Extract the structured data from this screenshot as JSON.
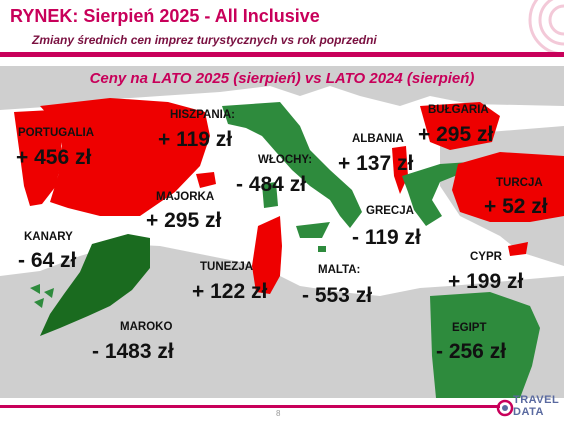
{
  "header": {
    "title": "RYNEK: Sierpień 2025 - All Inclusive",
    "subtitle": "Zmiany średnich cen imprez turystycznych vs rok poprzedni"
  },
  "map": {
    "heading": "Ceny na LATO 2025 (sierpień) vs  LATO 2024 (sierpień)",
    "colors": {
      "increase": "#ee0000",
      "decrease": "#2e8b3d",
      "dark_decrease": "#1a6b1f",
      "land": "#cfcfcf",
      "sea": "#ffffff"
    },
    "destinations": [
      {
        "key": "portugalia",
        "name": "PORTUGALIA",
        "change": "+ 456 zł",
        "trend": "up"
      },
      {
        "key": "hiszpania",
        "name": "HISZPANIA:",
        "change": "+ 119 zł",
        "trend": "up"
      },
      {
        "key": "wlochy",
        "name": "WŁOCHY:",
        "change": "- 484 zł",
        "trend": "down"
      },
      {
        "key": "albania",
        "name": "ALBANIA",
        "change": "+ 137 zł",
        "trend": "up"
      },
      {
        "key": "bulgaria",
        "name": "BUŁGARIA",
        "change": "+ 295 zł",
        "trend": "up"
      },
      {
        "key": "turcja",
        "name": "TURCJA",
        "change": "+ 52 zł",
        "trend": "up"
      },
      {
        "key": "majorka",
        "name": "MAJORKA",
        "change": "+ 295 zł",
        "trend": "up"
      },
      {
        "key": "grecja",
        "name": "GRECJA",
        "change": "- 119 zł",
        "trend": "down"
      },
      {
        "key": "kanary",
        "name": "KANARY",
        "change": "- 64 zł",
        "trend": "down"
      },
      {
        "key": "tunezja",
        "name": "TUNEZJA",
        "change": "+ 122 zł",
        "trend": "up"
      },
      {
        "key": "malta",
        "name": "MALTA:",
        "change": "- 553 zł",
        "trend": "down"
      },
      {
        "key": "cypr",
        "name": "CYPR",
        "change": "+ 199 zł",
        "trend": "up"
      },
      {
        "key": "maroko",
        "name": "MAROKO",
        "change": "- 1483 zł",
        "trend": "down"
      },
      {
        "key": "egipt",
        "name": "EGIPT",
        "change": "- 256 zł",
        "trend": "down"
      }
    ]
  },
  "footer": {
    "page_number": "8",
    "logo_line1": "TRAVEL",
    "logo_line2": "DATA"
  }
}
